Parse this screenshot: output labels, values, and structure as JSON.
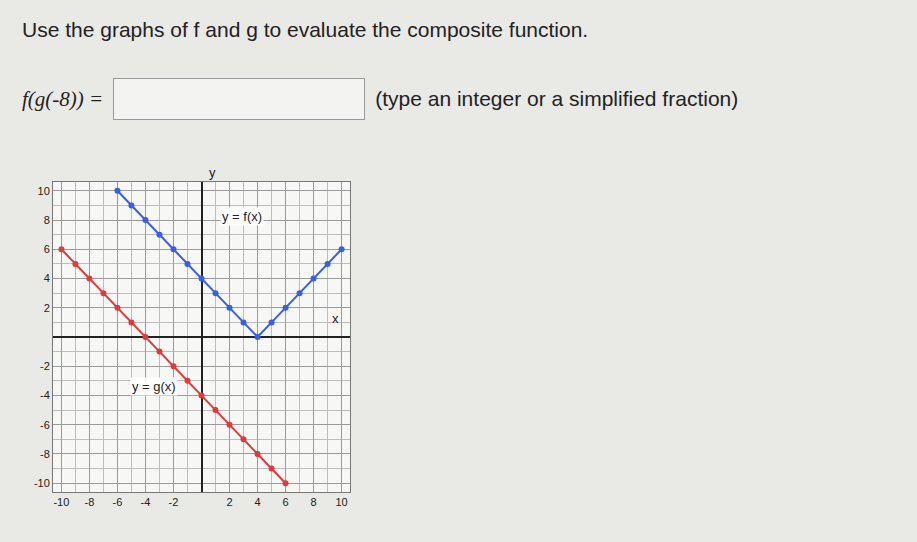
{
  "question": {
    "instruction": "Use the graphs of f and g to evaluate the composite function.",
    "expression": "f(g(-8)) =",
    "hint": "(type an integer or a simplified fraction)"
  },
  "chart_data": {
    "type": "line",
    "x_label": "x",
    "y_label": "y",
    "series": [
      {
        "name": "y = f(x)",
        "color": "#3a5fe0",
        "marker": "circle",
        "x": [
          -6,
          -5,
          -4,
          -3,
          -2,
          -1,
          0,
          1,
          2,
          3,
          4,
          5,
          6,
          7,
          8,
          9,
          10
        ],
        "values": [
          10,
          9,
          8,
          7,
          6,
          5,
          4,
          3,
          2,
          1,
          0,
          1,
          2,
          3,
          4,
          5,
          6
        ]
      },
      {
        "name": "y = g(x)",
        "color": "#e0393e",
        "marker": "circle",
        "x": [
          -10,
          -9,
          -8,
          -7,
          -6,
          -5,
          -4,
          -3,
          -2,
          -1,
          0,
          1,
          2,
          3,
          4,
          5,
          6
        ],
        "values": [
          6,
          5,
          4,
          3,
          2,
          1,
          0,
          -1,
          -2,
          -3,
          -4,
          -5,
          -6,
          -7,
          -8,
          -9,
          -10
        ]
      }
    ],
    "xlim": [
      -10.6,
      10.6
    ],
    "ylim": [
      -10.6,
      10.6
    ],
    "xticks": [
      -10,
      -8,
      -6,
      -4,
      -2,
      2,
      4,
      6,
      8,
      10
    ],
    "yticks": [
      -10,
      -8,
      -6,
      -4,
      -2,
      2,
      4,
      6,
      8,
      10
    ],
    "grid": true
  }
}
